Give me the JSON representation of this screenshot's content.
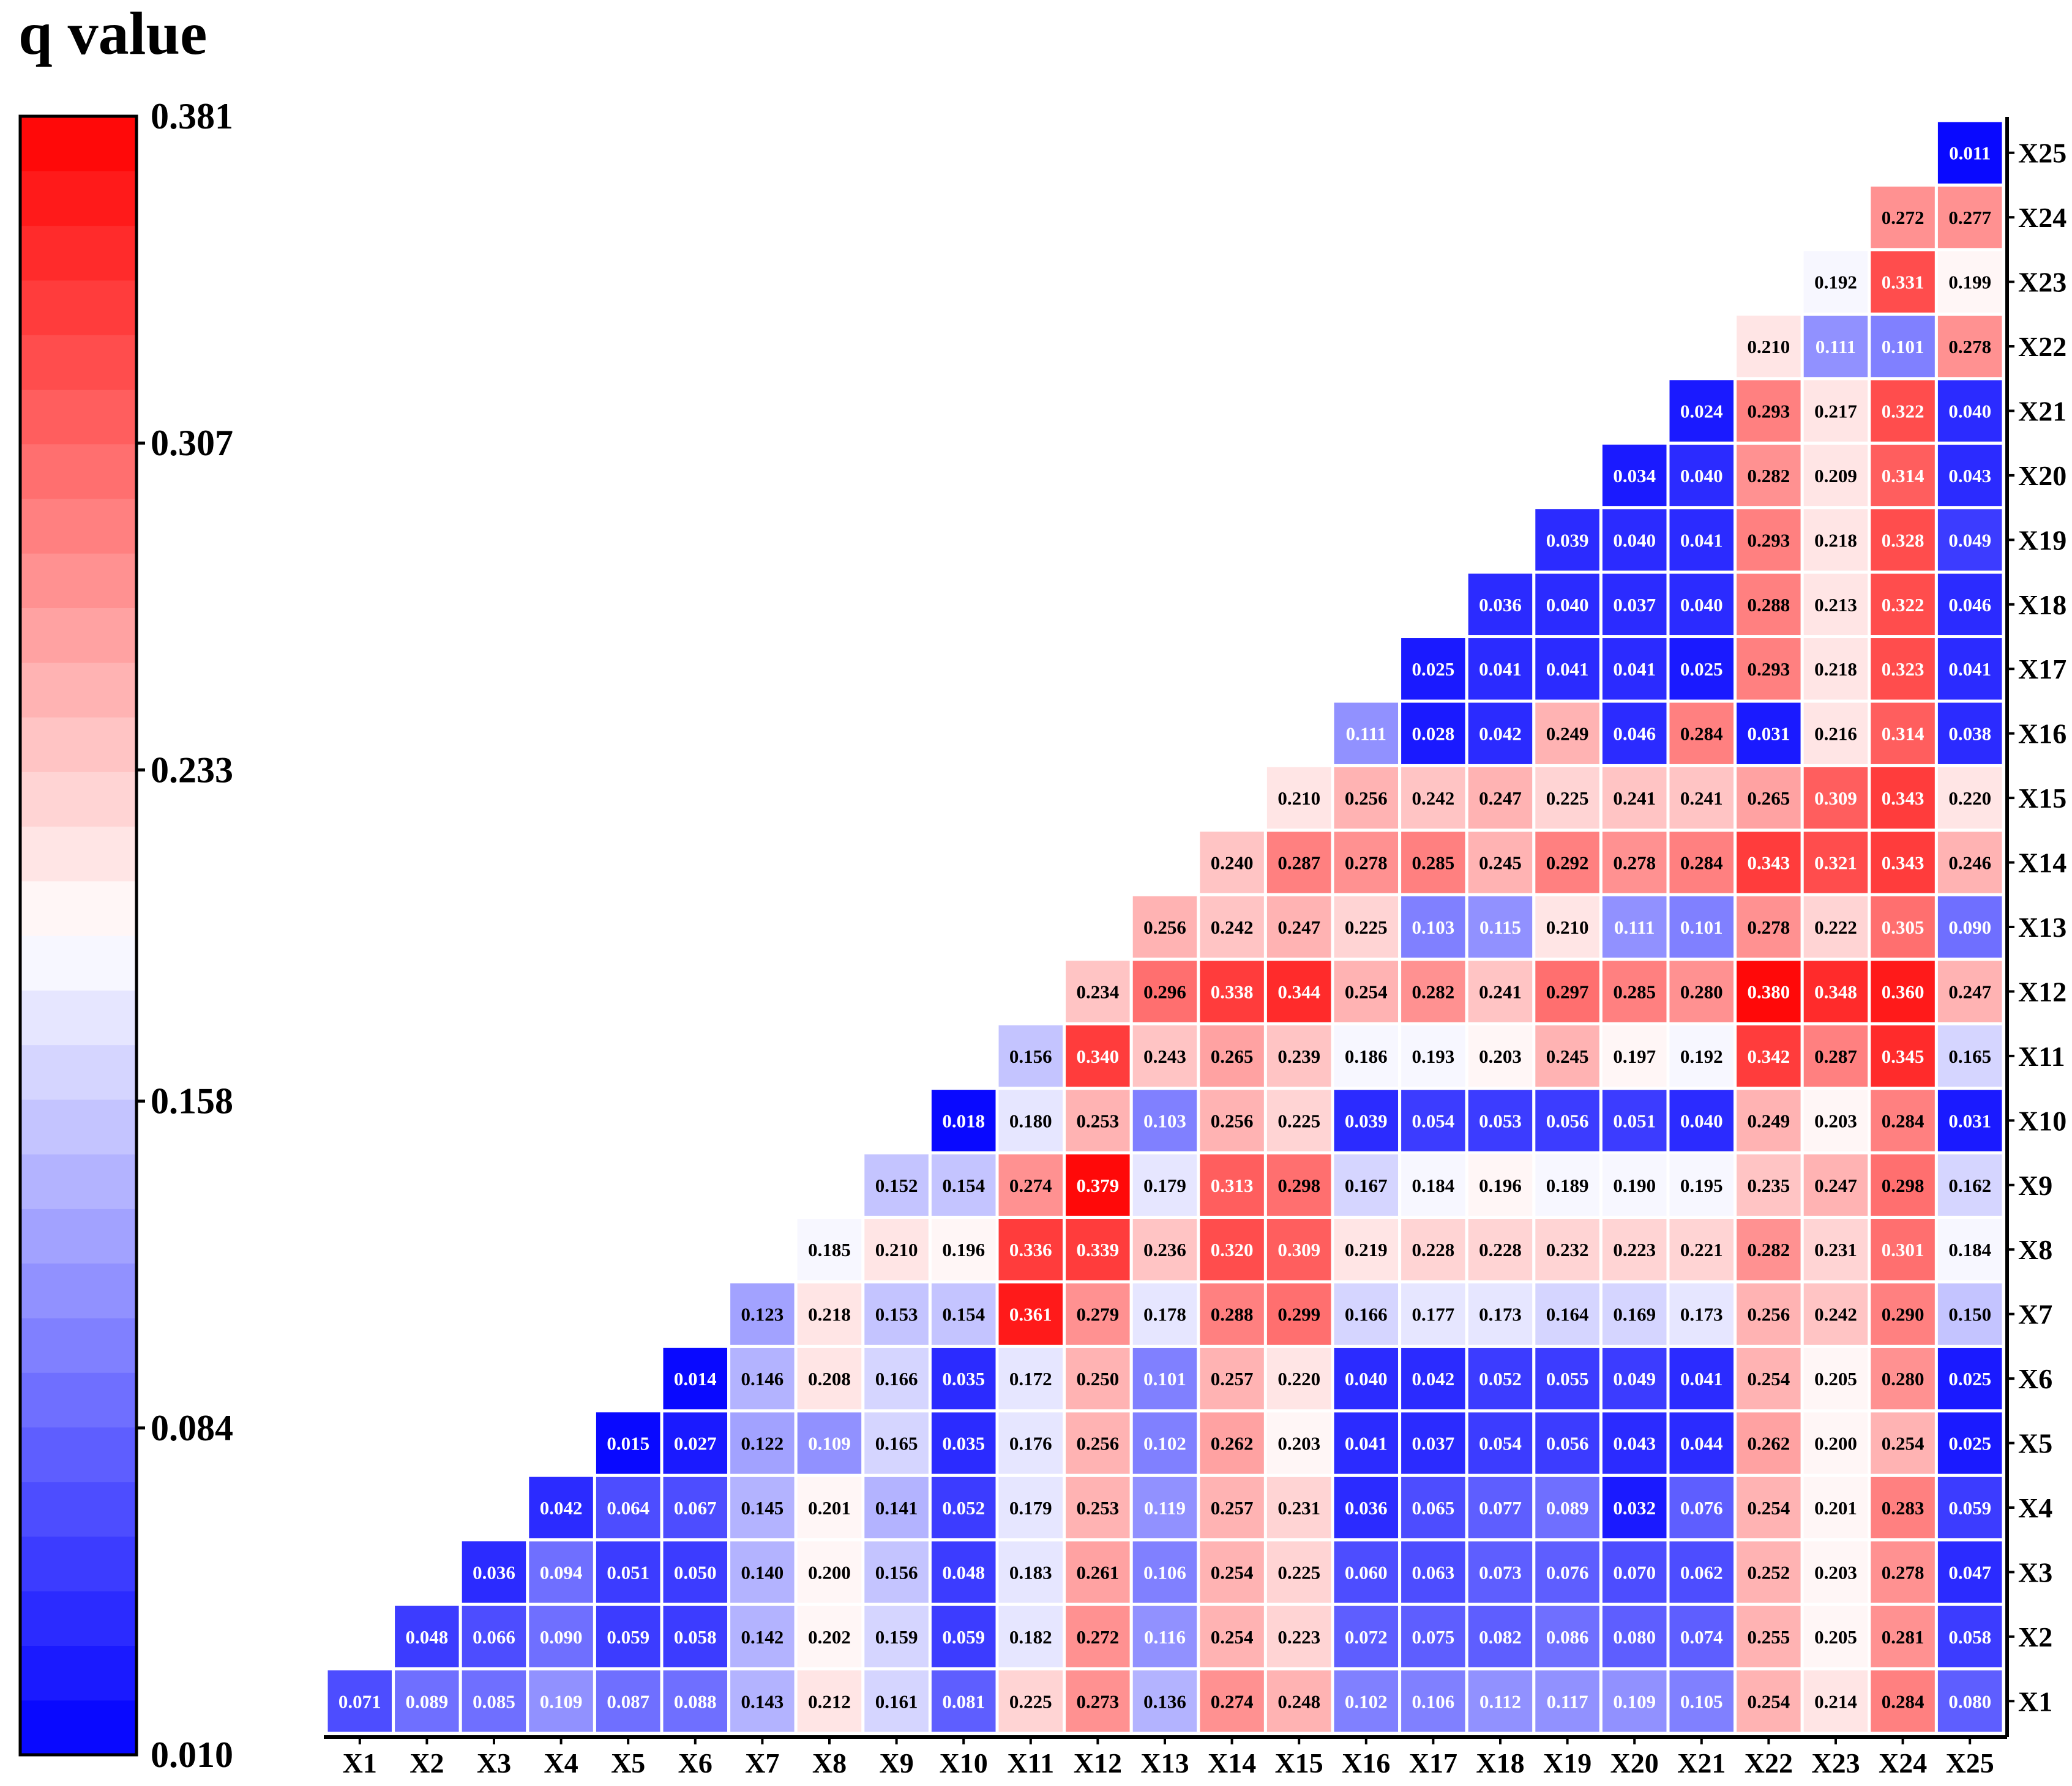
{
  "chart_data": {
    "type": "heatmap",
    "title": "q value",
    "colorbar": {
      "min": 0.01,
      "max": 0.381,
      "ticks": [
        "0.381",
        "0.307",
        "0.233",
        "0.158",
        "0.084",
        "0.010"
      ],
      "low_color": "#0000ff",
      "mid_color": "#ffffff",
      "high_color": "#ff0000",
      "levels": 30
    },
    "x_labels": [
      "X1",
      "X2",
      "X3",
      "X4",
      "X5",
      "X6",
      "X7",
      "X8",
      "X9",
      "X10",
      "X11",
      "X12",
      "X13",
      "X14",
      "X15",
      "X16",
      "X17",
      "X18",
      "X19",
      "X20",
      "X21",
      "X22",
      "X23",
      "X24",
      "X25"
    ],
    "y_labels_bottom_to_top": [
      "X1",
      "X2",
      "X3",
      "X4",
      "X5",
      "X6",
      "X7",
      "X8",
      "X9",
      "X10",
      "X11",
      "X12",
      "X13",
      "X14",
      "X15",
      "X16",
      "X17",
      "X18",
      "X19",
      "X20",
      "X21",
      "X22",
      "X23",
      "X24",
      "X25"
    ],
    "rows": [
      {
        "row": "X1",
        "values": [
          "0.071",
          "0.089",
          "0.085",
          "0.109",
          "0.087",
          "0.088",
          "0.143",
          "0.212",
          "0.161",
          "0.081",
          "0.225",
          "0.273",
          "0.136",
          "0.274",
          "0.248",
          "0.102",
          "0.106",
          "0.112",
          "0.117",
          "0.109",
          "0.105",
          "0.254",
          "0.214",
          "0.284",
          "0.080"
        ]
      },
      {
        "row": "X2",
        "values": [
          "0.048",
          "0.066",
          "0.090",
          "0.059",
          "0.058",
          "0.142",
          "0.202",
          "0.159",
          "0.059",
          "0.182",
          "0.272",
          "0.116",
          "0.254",
          "0.223",
          "0.072",
          "0.075",
          "0.082",
          "0.086",
          "0.080",
          "0.074",
          "0.255",
          "0.205",
          "0.281",
          "0.058"
        ]
      },
      {
        "row": "X3",
        "values": [
          "0.036",
          "0.094",
          "0.051",
          "0.050",
          "0.140",
          "0.200",
          "0.156",
          "0.048",
          "0.183",
          "0.261",
          "0.106",
          "0.254",
          "0.225",
          "0.060",
          "0.063",
          "0.073",
          "0.076",
          "0.070",
          "0.062",
          "0.252",
          "0.203",
          "0.278",
          "0.047"
        ]
      },
      {
        "row": "X4",
        "values": [
          "0.042",
          "0.064",
          "0.067",
          "0.145",
          "0.201",
          "0.141",
          "0.052",
          "0.179",
          "0.253",
          "0.119",
          "0.257",
          "0.231",
          "0.036",
          "0.065",
          "0.077",
          "0.089",
          "0.032",
          "0.076",
          "0.254",
          "0.201",
          "0.283",
          "0.059"
        ]
      },
      {
        "row": "X5",
        "values": [
          "0.015",
          "0.027",
          "0.122",
          "0.109",
          "0.165",
          "0.035",
          "0.176",
          "0.256",
          "0.102",
          "0.262",
          "0.203",
          "0.041",
          "0.037",
          "0.054",
          "0.056",
          "0.043",
          "0.044",
          "0.262",
          "0.200",
          "0.254",
          "0.025"
        ]
      },
      {
        "row": "X6",
        "values": [
          "0.014",
          "0.146",
          "0.208",
          "0.166",
          "0.035",
          "0.172",
          "0.250",
          "0.101",
          "0.257",
          "0.220",
          "0.040",
          "0.042",
          "0.052",
          "0.055",
          "0.049",
          "0.041",
          "0.254",
          "0.205",
          "0.280",
          "0.025"
        ]
      },
      {
        "row": "X7",
        "values": [
          "0.123",
          "0.218",
          "0.153",
          "0.154",
          "0.361",
          "0.279",
          "0.178",
          "0.288",
          "0.299",
          "0.166",
          "0.177",
          "0.173",
          "0.164",
          "0.169",
          "0.173",
          "0.256",
          "0.242",
          "0.290",
          "0.150"
        ]
      },
      {
        "row": "X8",
        "values": [
          "0.185",
          "0.210",
          "0.196",
          "0.336",
          "0.339",
          "0.236",
          "0.320",
          "0.309",
          "0.219",
          "0.228",
          "0.228",
          "0.232",
          "0.223",
          "0.221",
          "0.282",
          "0.231",
          "0.301",
          "0.184"
        ]
      },
      {
        "row": "X9",
        "values": [
          "0.152",
          "0.154",
          "0.274",
          "0.379",
          "0.179",
          "0.313",
          "0.298",
          "0.167",
          "0.184",
          "0.196",
          "0.189",
          "0.190",
          "0.195",
          "0.235",
          "0.247",
          "0.298",
          "0.162"
        ]
      },
      {
        "row": "X10",
        "values": [
          "0.018",
          "0.180",
          "0.253",
          "0.103",
          "0.256",
          "0.225",
          "0.039",
          "0.054",
          "0.053",
          "0.056",
          "0.051",
          "0.040",
          "0.249",
          "0.203",
          "0.284",
          "0.031"
        ]
      },
      {
        "row": "X11",
        "values": [
          "0.156",
          "0.340",
          "0.243",
          "0.265",
          "0.239",
          "0.186",
          "0.193",
          "0.203",
          "0.245",
          "0.197",
          "0.192",
          "0.342",
          "0.287",
          "0.345",
          "0.165"
        ]
      },
      {
        "row": "X12",
        "values": [
          "0.234",
          "0.296",
          "0.338",
          "0.344",
          "0.254",
          "0.282",
          "0.241",
          "0.297",
          "0.285",
          "0.280",
          "0.380",
          "0.348",
          "0.360",
          "0.247"
        ]
      },
      {
        "row": "X13",
        "values": [
          "0.256",
          "0.242",
          "0.247",
          "0.225",
          "0.103",
          "0.115",
          "0.210",
          "0.111",
          "0.101",
          "0.278",
          "0.222",
          "0.305",
          "0.090"
        ]
      },
      {
        "row": "X14",
        "values": [
          "0.240",
          "0.287",
          "0.278",
          "0.285",
          "0.245",
          "0.292",
          "0.278",
          "0.284",
          "0.343",
          "0.321",
          "0.343",
          "0.246"
        ]
      },
      {
        "row": "X15",
        "values": [
          "0.210",
          "0.256",
          "0.242",
          "0.247",
          "0.225",
          "0.241",
          "0.241",
          "0.265",
          "0.309",
          "0.343",
          "0.220"
        ]
      },
      {
        "row": "X16",
        "values": [
          "0.111",
          "0.028",
          "0.042",
          "0.249",
          "0.046",
          "0.284",
          "0.031",
          "0.216",
          "0.314",
          "0.038"
        ]
      },
      {
        "row": "X17",
        "values": [
          "0.025",
          "0.041",
          "0.041",
          "0.041",
          "0.025",
          "0.293",
          "0.218",
          "0.323",
          "0.041"
        ]
      },
      {
        "row": "X18",
        "values": [
          "0.036",
          "0.040",
          "0.037",
          "0.040",
          "0.288",
          "0.213",
          "0.322",
          "0.046"
        ]
      },
      {
        "row": "X19",
        "values": [
          "0.039",
          "0.040",
          "0.041",
          "0.293",
          "0.218",
          "0.328",
          "0.049"
        ]
      },
      {
        "row": "X20",
        "values": [
          "0.034",
          "0.040",
          "0.282",
          "0.209",
          "0.314",
          "0.043"
        ]
      },
      {
        "row": "X21",
        "values": [
          "0.024",
          "0.293",
          "0.217",
          "0.322",
          "0.040"
        ]
      },
      {
        "row": "X22",
        "values": [
          "0.210",
          "0.111",
          "0.101",
          "0.278"
        ]
      },
      {
        "row": "X23",
        "values": [
          "0.192",
          "0.331",
          "0.199"
        ]
      },
      {
        "row": "X24",
        "values": [
          "0.272",
          "0.277"
        ]
      },
      {
        "row": "X25",
        "values": [
          "0.011"
        ]
      }
    ]
  }
}
